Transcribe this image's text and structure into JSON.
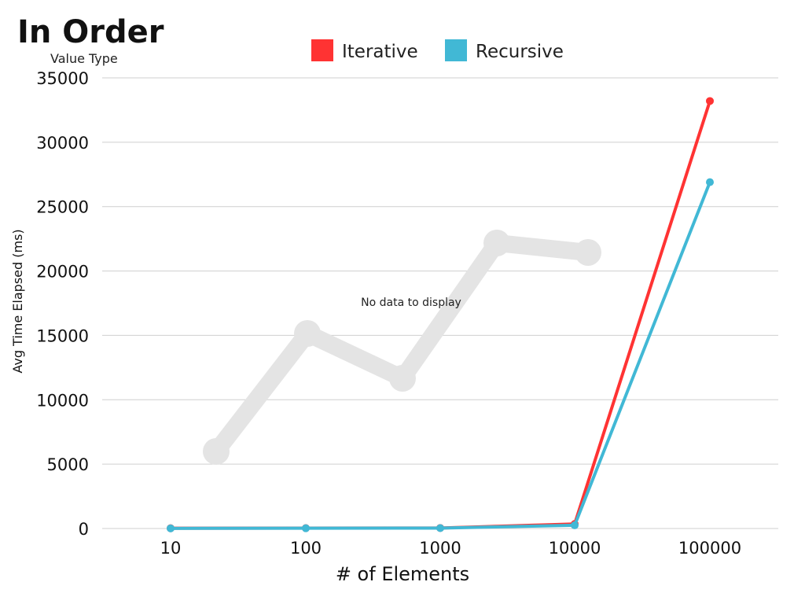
{
  "chart_data": {
    "type": "line",
    "title": "In Order",
    "subtitle": "Value Type",
    "xlabel": "# of Elements",
    "ylabel": "Avg Time Elapsed (ms)",
    "categories": [
      "10",
      "100",
      "1000",
      "10000",
      "100000"
    ],
    "ylim": [
      0,
      35000
    ],
    "yticks": [
      "0",
      "5000",
      "10000",
      "15000",
      "20000",
      "25000",
      "30000",
      "35000"
    ],
    "grid": true,
    "legend_position": "top",
    "series": [
      {
        "name": "Iterative",
        "color": "#ff3333",
        "values": [
          20,
          30,
          40,
          350,
          33200
        ]
      },
      {
        "name": "Recursive",
        "color": "#41b8d5",
        "values": [
          10,
          20,
          30,
          250,
          26900
        ]
      }
    ],
    "placeholder": {
      "text": "No data to display",
      "color": "#e4e4e4"
    }
  }
}
